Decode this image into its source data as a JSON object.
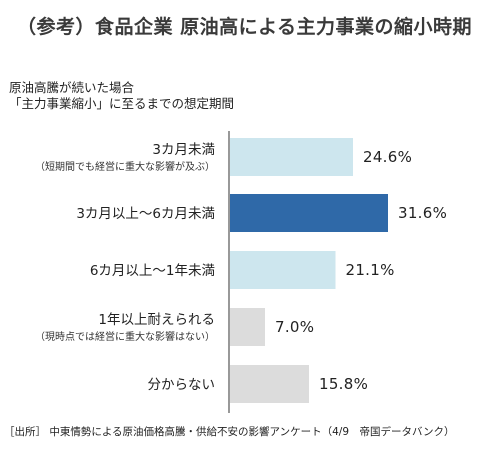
{
  "title": "（参考）食品企業 原油高による主力事業の縮小時期",
  "question": {
    "line1": "原油高騰が続いた場合",
    "line2": "「主力事業縮小」に至るまでの想定期間"
  },
  "source": "［出所］ 中東情勢による原油価格高騰・供給不安の影響アンケート（4/9　帝国データバンク）",
  "colors": {
    "light_blue": "#cde6ee",
    "dark_blue": "#2f69a8",
    "gray": "#dcdcdc",
    "axis": "#555555"
  },
  "chart_data": {
    "type": "bar",
    "orientation": "horizontal",
    "categories": [
      "3カ月未満",
      "3カ月以上～6カ月未満",
      "6カ月以上～1年未満",
      "1年以上耐えられる",
      "分からない"
    ],
    "sublabels": [
      "（短期間でも経営に重大な影響が及ぶ）",
      "",
      "",
      "（現時点では経営に重大な影響はない）",
      ""
    ],
    "values": [
      24.6,
      31.6,
      21.1,
      7.0,
      15.8
    ],
    "value_labels": [
      "24.6%",
      "31.6%",
      "21.1%",
      "7.0%",
      "15.8%"
    ],
    "bar_colors": [
      "light_blue",
      "dark_blue",
      "light_blue",
      "gray",
      "gray"
    ],
    "xlim": [
      0,
      31.6
    ],
    "title": "（参考）食品企業 原油高による主力事業の縮小時期",
    "xlabel": "",
    "ylabel": "",
    "grid": false,
    "legend": "none"
  }
}
